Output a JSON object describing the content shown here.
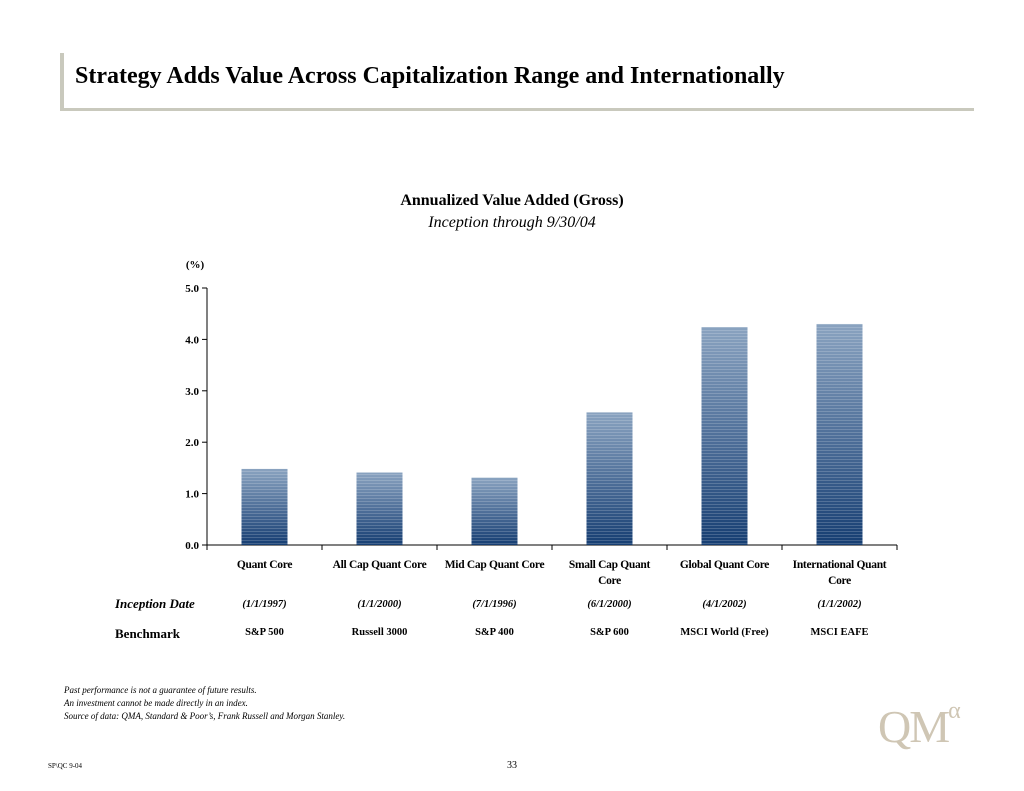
{
  "header": {
    "title": "Strategy Adds Value Across Capitalization Range and Internationally"
  },
  "chart_data": {
    "type": "bar",
    "title": "Annualized Value Added (Gross)",
    "subtitle": "Inception through 9/30/04",
    "ylabel": "(%)",
    "ylim": [
      0,
      5
    ],
    "yticks": [
      "0.0",
      "1.0",
      "2.0",
      "3.0",
      "4.0",
      "5.0"
    ],
    "categories": [
      [
        "Quant Core"
      ],
      [
        "All Cap Quant Core"
      ],
      [
        "Mid Cap Quant Core"
      ],
      [
        "Small Cap Quant",
        "Core"
      ],
      [
        "Global Quant Core"
      ],
      [
        "International Quant",
        "Core"
      ]
    ],
    "values": [
      1.48,
      1.41,
      1.31,
      2.58,
      4.24,
      4.3
    ],
    "bar_color_top": "#8aa3c0",
    "bar_color_bottom": "#163e72",
    "grid": false
  },
  "table": {
    "inception_label": "Inception Date",
    "benchmark_label": "Benchmark",
    "inception_dates": [
      "(1/1/1997)",
      "(1/1/2000)",
      "(7/1/1996)",
      "(6/1/2000)",
      "(4/1/2002)",
      "(1/1/2002)"
    ],
    "benchmarks": [
      "S&P 500",
      "Russell 3000",
      "S&P 400",
      "S&P 600",
      "MSCI World (Free)",
      "MSCI EAFE"
    ]
  },
  "footnotes": [
    "Past performance is not a guarantee of future results.",
    "An investment cannot be made directly in an index.",
    "Source of data: QMA, Standard & Poor’s, Frank Russell and Morgan Stanley."
  ],
  "footer": {
    "code": "SP\\QC 9-04",
    "page": "33"
  },
  "logo": {
    "text": "QM",
    "superscript": "α"
  }
}
